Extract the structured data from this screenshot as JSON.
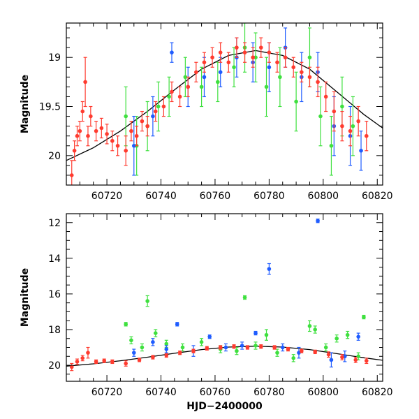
{
  "chart_data": [
    {
      "type": "scatter",
      "panel": "top",
      "title": "",
      "xlabel": "",
      "ylabel": "Magnitude",
      "xlim": [
        60705,
        60822
      ],
      "ylim": [
        20.3,
        18.65
      ],
      "y_inverted": true,
      "xticks": [
        60720,
        60740,
        60760,
        60780,
        60800,
        60820
      ],
      "xtick_labels": [
        "60720",
        "60740",
        "60760",
        "60780",
        "60800",
        "60820"
      ],
      "yticks": [
        19,
        19.5,
        20
      ],
      "ytick_labels": [
        "19",
        "19.5",
        "20"
      ],
      "grid": false,
      "colors": {
        "red": "#ff3b2f",
        "green": "#3fe03f",
        "blue": "#1f5cff",
        "model": "#000000"
      },
      "model_curve": {
        "name": "model",
        "x": [
          60705,
          60715,
          60725,
          60735,
          60745,
          60755,
          60765,
          60775,
          60785,
          60795,
          60805,
          60815,
          60822
        ],
        "y": [
          20.05,
          19.92,
          19.75,
          19.55,
          19.33,
          19.12,
          18.98,
          18.93,
          18.98,
          19.12,
          19.35,
          19.58,
          19.72
        ]
      },
      "series": [
        {
          "color": "red",
          "x": [
            60707,
            60708,
            60709,
            60710,
            60711,
            60712,
            60713,
            60714,
            60716,
            60718,
            60720,
            60722,
            60724,
            60727,
            60729,
            60731,
            60733,
            60735,
            60738,
            60741,
            60744,
            60747,
            60750,
            60753,
            60756,
            60759,
            60762,
            60765,
            60768,
            60771,
            60774,
            60777,
            60780,
            60783,
            60786,
            60789,
            60792,
            60795,
            60798,
            60801,
            60804,
            60807,
            60810,
            60813,
            60816
          ],
          "y": [
            20.2,
            19.95,
            19.8,
            19.75,
            19.55,
            19.25,
            19.8,
            19.6,
            19.75,
            19.72,
            19.78,
            19.85,
            19.9,
            19.95,
            19.75,
            19.8,
            19.65,
            19.7,
            19.55,
            19.5,
            19.35,
            19.4,
            19.3,
            19.15,
            19.05,
            19.0,
            18.95,
            19.05,
            18.9,
            18.95,
            19.0,
            18.9,
            18.95,
            19.05,
            19.0,
            19.1,
            19.15,
            19.2,
            19.25,
            19.4,
            19.55,
            19.7,
            19.75,
            19.65,
            19.8
          ],
          "yerr": [
            0.15,
            0.1,
            0.1,
            0.1,
            0.1,
            0.25,
            0.1,
            0.1,
            0.1,
            0.1,
            0.1,
            0.1,
            0.1,
            0.15,
            0.1,
            0.1,
            0.1,
            0.1,
            0.1,
            0.1,
            0.1,
            0.1,
            0.1,
            0.1,
            0.1,
            0.1,
            0.1,
            0.1,
            0.1,
            0.1,
            0.1,
            0.1,
            0.1,
            0.1,
            0.1,
            0.1,
            0.1,
            0.1,
            0.15,
            0.15,
            0.2,
            0.15,
            0.15,
            0.15,
            0.15
          ]
        },
        {
          "color": "green",
          "x": [
            60727,
            60731,
            60735,
            60739,
            60743,
            60749,
            60755,
            60761,
            60767,
            60771,
            60775,
            60779,
            60784,
            60790,
            60795,
            60799,
            60803,
            60807,
            60811
          ],
          "y": [
            19.6,
            19.9,
            19.7,
            19.5,
            19.4,
            19.2,
            19.3,
            19.25,
            19.1,
            18.9,
            19.0,
            19.3,
            19.2,
            19.45,
            19.0,
            19.6,
            19.9,
            19.5,
            19.7
          ],
          "yerr": [
            0.3,
            0.3,
            0.25,
            0.25,
            0.2,
            0.2,
            0.2,
            0.2,
            0.2,
            0.25,
            0.25,
            0.3,
            0.3,
            0.3,
            0.3,
            0.3,
            0.3,
            0.3,
            0.3
          ]
        },
        {
          "color": "blue",
          "x": [
            60730,
            60737,
            60744,
            60750,
            60756,
            60762,
            60768,
            60774,
            60780,
            60786,
            60792,
            60798,
            60804,
            60810,
            60814
          ],
          "y": [
            19.9,
            19.6,
            18.95,
            19.3,
            19.2,
            19.15,
            19.0,
            19.05,
            19.1,
            18.9,
            19.2,
            19.15,
            19.7,
            19.8,
            19.95
          ],
          "yerr": [
            0.3,
            0.2,
            0.1,
            0.2,
            0.2,
            0.15,
            0.2,
            0.2,
            0.25,
            0.2,
            0.25,
            0.2,
            0.3,
            0.3,
            0.2
          ]
        }
      ]
    },
    {
      "type": "scatter",
      "panel": "bottom",
      "title": "",
      "xlabel": "HJD−2400000",
      "ylabel": "Magnitude",
      "xlim": [
        60705,
        60822
      ],
      "ylim": [
        20.9,
        11.5
      ],
      "y_inverted": true,
      "xticks": [
        60720,
        60740,
        60760,
        60780,
        60800,
        60820
      ],
      "xtick_labels": [
        "60720",
        "60740",
        "60760",
        "60780",
        "60800",
        "60820"
      ],
      "yticks": [
        12,
        14,
        16,
        18,
        20
      ],
      "ytick_labels": [
        "12",
        "14",
        "16",
        "18",
        "20"
      ],
      "grid": false,
      "colors": {
        "red": "#ff3b2f",
        "green": "#3fe03f",
        "blue": "#1f5cff",
        "model": "#000000"
      },
      "model_curve": {
        "name": "model",
        "x": [
          60705,
          60715,
          60725,
          60735,
          60745,
          60755,
          60765,
          60775,
          60785,
          60795,
          60805,
          60815,
          60822
        ],
        "y": [
          20.05,
          19.92,
          19.75,
          19.55,
          19.33,
          19.12,
          18.98,
          18.93,
          18.98,
          19.12,
          19.35,
          19.58,
          19.72
        ]
      },
      "series": [
        {
          "color": "red",
          "x": [
            60707,
            60709,
            60711,
            60713,
            60716,
            60719,
            60722,
            60727,
            60732,
            60737,
            60742,
            60747,
            60752,
            60757,
            60762,
            60767,
            60772,
            60777,
            60782,
            60787,
            60792,
            60797,
            60802,
            60807,
            60812,
            60816
          ],
          "y": [
            20.1,
            19.8,
            19.6,
            19.3,
            19.8,
            19.75,
            19.8,
            19.9,
            19.7,
            19.55,
            19.45,
            19.3,
            19.2,
            19.05,
            19.0,
            18.95,
            19.0,
            18.95,
            19.0,
            19.1,
            19.2,
            19.25,
            19.4,
            19.55,
            19.7,
            19.75
          ],
          "yerr": [
            0.2,
            0.15,
            0.15,
            0.3,
            0.1,
            0.1,
            0.1,
            0.15,
            0.1,
            0.1,
            0.1,
            0.1,
            0.1,
            0.1,
            0.1,
            0.1,
            0.1,
            0.1,
            0.1,
            0.1,
            0.1,
            0.1,
            0.15,
            0.15,
            0.15,
            0.15
          ]
        },
        {
          "color": "green",
          "x": [
            60727,
            60729,
            60733,
            60735,
            60738,
            60742,
            60748,
            60755,
            60762,
            60768,
            60771,
            60775,
            60779,
            60783,
            60789,
            60795,
            60797,
            60801,
            60805,
            60809,
            60813,
            60815
          ],
          "y": [
            17.7,
            18.6,
            19.0,
            16.4,
            18.2,
            18.8,
            19.0,
            18.7,
            19.1,
            19.2,
            16.2,
            18.9,
            18.3,
            19.3,
            19.6,
            17.8,
            18.0,
            19.0,
            18.5,
            18.3,
            19.5,
            17.3
          ],
          "yerr": [
            0.1,
            0.2,
            0.2,
            0.3,
            0.2,
            0.2,
            0.2,
            0.2,
            0.2,
            0.2,
            0.1,
            0.2,
            0.3,
            0.2,
            0.2,
            0.3,
            0.2,
            0.2,
            0.2,
            0.2,
            0.2,
            0.1
          ]
        },
        {
          "color": "blue",
          "x": [
            60730,
            60737,
            60742,
            60746,
            60752,
            60758,
            60764,
            60770,
            60775,
            60780,
            60785,
            60791,
            60798,
            60803,
            60808,
            60813
          ],
          "y": [
            19.3,
            18.7,
            19.1,
            17.7,
            19.2,
            18.4,
            19.0,
            18.9,
            18.2,
            14.6,
            19.0,
            19.3,
            11.9,
            19.7,
            19.5,
            18.4
          ],
          "yerr": [
            0.2,
            0.2,
            0.2,
            0.1,
            0.3,
            0.1,
            0.2,
            0.2,
            0.1,
            0.3,
            0.2,
            0.3,
            0.1,
            0.4,
            0.3,
            0.2
          ]
        }
      ]
    }
  ]
}
